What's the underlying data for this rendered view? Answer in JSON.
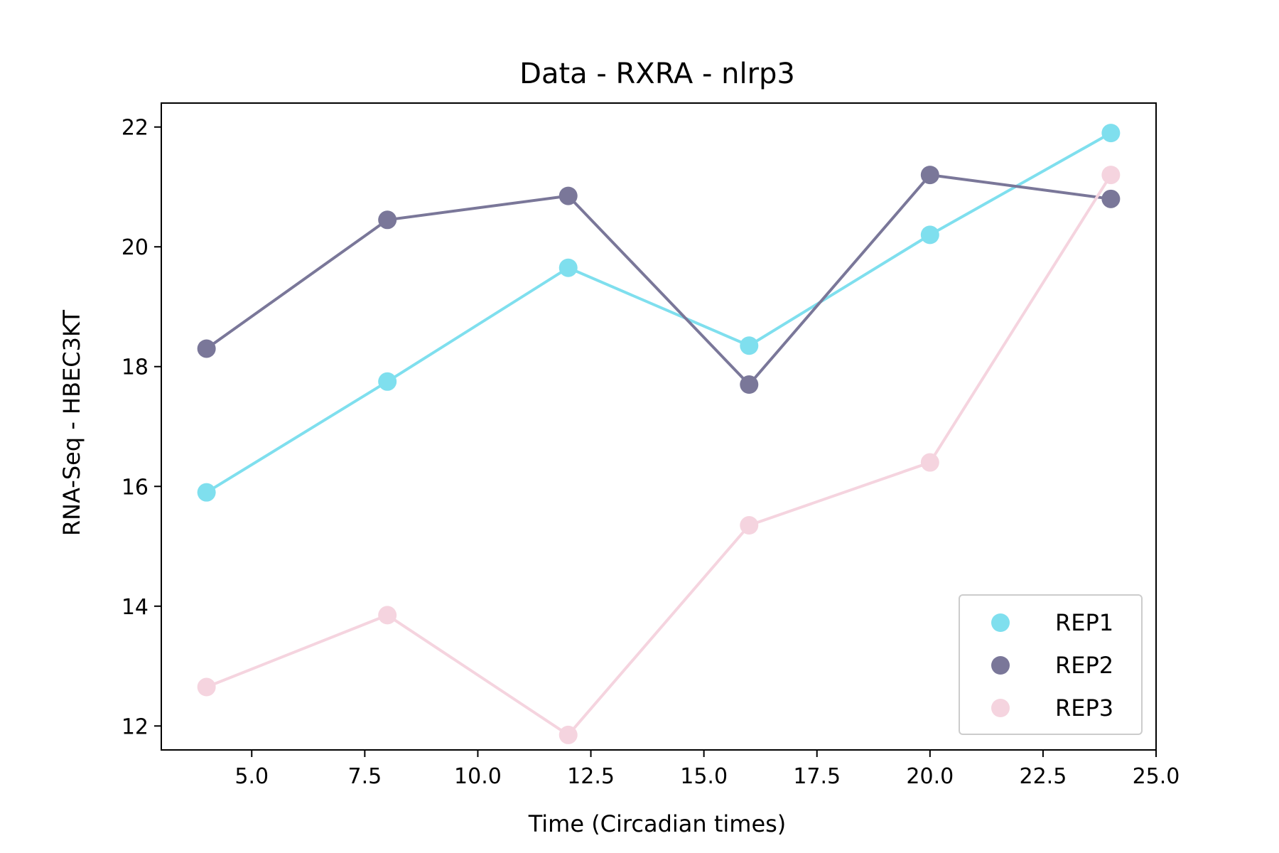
{
  "chart_data": {
    "type": "line",
    "title": "Data - RXRA - nlrp3",
    "xlabel": "Time (Circadian times)",
    "ylabel": "RNA-Seq - HBEC3KT",
    "xlim": [
      3.0,
      25.0
    ],
    "ylim": [
      11.6,
      22.4
    ],
    "xticks": [
      5.0,
      7.5,
      10.0,
      12.5,
      15.0,
      17.5,
      20.0,
      22.5,
      25.0
    ],
    "xtick_labels": [
      "5.0",
      "7.5",
      "10.0",
      "12.5",
      "15.0",
      "17.5",
      "20.0",
      "22.5",
      "25.0"
    ],
    "yticks": [
      12,
      14,
      16,
      18,
      20,
      22
    ],
    "ytick_labels": [
      "12",
      "14",
      "16",
      "18",
      "20",
      "22"
    ],
    "grid": false,
    "legend_position": "lower-right",
    "x": [
      4,
      8,
      12,
      16,
      20,
      24
    ],
    "series": [
      {
        "name": "REP1",
        "color": "#7fdfee",
        "values": [
          15.9,
          17.75,
          19.65,
          18.35,
          20.2,
          21.9
        ]
      },
      {
        "name": "REP2",
        "color": "#7a7799",
        "values": [
          18.3,
          20.45,
          20.85,
          17.7,
          21.2,
          20.8
        ]
      },
      {
        "name": "REP3",
        "color": "#f5d4df",
        "values": [
          12.65,
          13.85,
          11.85,
          15.35,
          16.4,
          21.2
        ]
      }
    ]
  }
}
